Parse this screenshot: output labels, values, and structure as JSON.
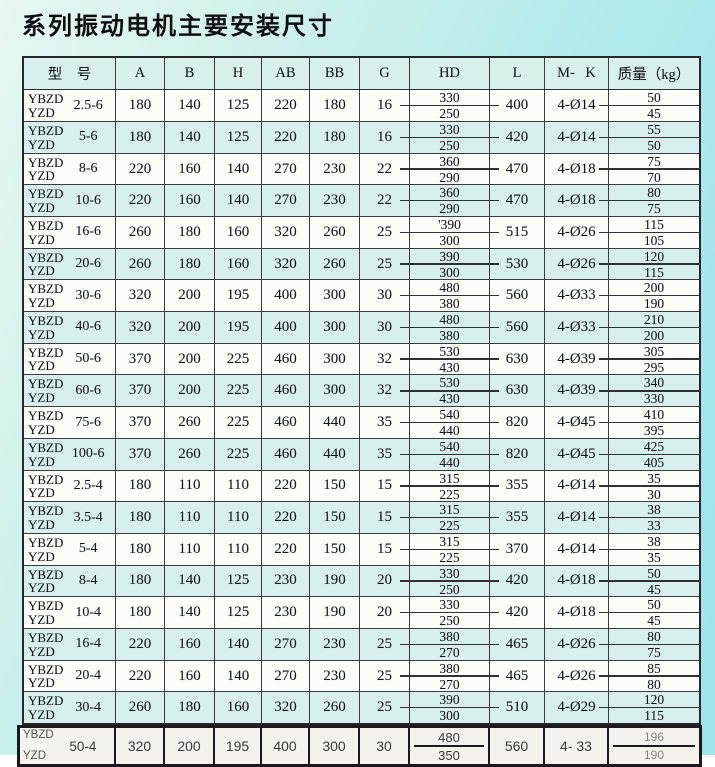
{
  "title": "系列振动电机主要安装尺寸",
  "colors": {
    "page_cyan": "#a4e6ec",
    "stripe_cyan": "#d7f0ed",
    "row_white": "#fcfcf8",
    "grid_line": "#3b3b40",
    "text": "#15151d",
    "strip_paper": "#f3f2ec"
  },
  "table": {
    "headers": [
      "型　号",
      "A",
      "B",
      "H",
      "AB",
      "BB",
      "G",
      "HD",
      "L",
      "M- K",
      "质量（kg）"
    ],
    "rows": [
      {
        "brand_top": "YBZD",
        "brand_bottom": "YZD",
        "size": "2.5-6",
        "A": "180",
        "B": "140",
        "H": "125",
        "AB": "220",
        "BB": "180",
        "G": "16",
        "HD_top": "330",
        "HD_bottom": "250",
        "L": "400",
        "MK": "4-Ø14",
        "W_top": "50",
        "W_bottom": "45"
      },
      {
        "brand_top": "YBZD",
        "brand_bottom": "YZD",
        "size": "5-6",
        "A": "180",
        "B": "140",
        "H": "125",
        "AB": "220",
        "BB": "180",
        "G": "16",
        "HD_top": "330",
        "HD_bottom": "250",
        "L": "420",
        "MK": "4-Ø14",
        "W_top": "55",
        "W_bottom": "50"
      },
      {
        "brand_top": "YBZD",
        "brand_bottom": "YZD",
        "size": "8-6",
        "A": "220",
        "B": "160",
        "H": "140",
        "AB": "270",
        "BB": "230",
        "G": "22",
        "HD_top": "360",
        "HD_bottom": "290",
        "L": "470",
        "MK": "4-Ø18",
        "W_top": "75",
        "W_bottom": "70"
      },
      {
        "brand_top": "YBZD",
        "brand_bottom": "YZD",
        "size": "10-6",
        "A": "220",
        "B": "160",
        "H": "140",
        "AB": "270",
        "BB": "230",
        "G": "22",
        "HD_top": "360",
        "HD_bottom": "290",
        "L": "470",
        "MK": "4-Ø18",
        "W_top": "80",
        "W_bottom": "75"
      },
      {
        "brand_top": "YBZD",
        "brand_bottom": "YZD",
        "size": "16-6",
        "A": "260",
        "B": "180",
        "H": "160",
        "AB": "320",
        "BB": "260",
        "G": "25",
        "HD_top": "'390",
        "HD_bottom": "300",
        "L": "515",
        "MK": "4-Ø26",
        "W_top": "115",
        "W_bottom": "105"
      },
      {
        "brand_top": "YBZD",
        "brand_bottom": "YZD",
        "size": "20-6",
        "A": "260",
        "B": "180",
        "H": "160",
        "AB": "320",
        "BB": "260",
        "G": "25",
        "HD_top": "390",
        "HD_bottom": "300",
        "L": "530",
        "MK": "4-Ø26",
        "W_top": "120",
        "W_bottom": "115"
      },
      {
        "brand_top": "YBZD",
        "brand_bottom": "YZD",
        "size": "30-6",
        "A": "320",
        "B": "200",
        "H": "195",
        "AB": "400",
        "BB": "300",
        "G": "30",
        "HD_top": "480",
        "HD_bottom": "380",
        "L": "560",
        "MK": "4-Ø33",
        "W_top": "200",
        "W_bottom": "190"
      },
      {
        "brand_top": "YBZD",
        "brand_bottom": "YZD",
        "size": "40-6",
        "A": "320",
        "B": "200",
        "H": "195",
        "AB": "400",
        "BB": "300",
        "G": "30",
        "HD_top": "480",
        "HD_bottom": "380",
        "L": "560",
        "MK": "4-Ø33",
        "W_top": "210",
        "W_bottom": "200"
      },
      {
        "brand_top": "YBZD",
        "brand_bottom": "YZD",
        "size": "50-6",
        "A": "370",
        "B": "200",
        "H": "225",
        "AB": "460",
        "BB": "300",
        "G": "32",
        "HD_top": "530",
        "HD_bottom": "430",
        "L": "630",
        "MK": "4-Ø39",
        "W_top": "305",
        "W_bottom": "295"
      },
      {
        "brand_top": "YBZD",
        "brand_bottom": "YZD",
        "size": "60-6",
        "A": "370",
        "B": "200",
        "H": "225",
        "AB": "460",
        "BB": "300",
        "G": "32",
        "HD_top": "530",
        "HD_bottom": "430",
        "L": "630",
        "MK": "4-Ø39",
        "W_top": "340",
        "W_bottom": "330"
      },
      {
        "brand_top": "YBZD",
        "brand_bottom": "YZD",
        "size": "75-6",
        "A": "370",
        "B": "260",
        "H": "225",
        "AB": "460",
        "BB": "440",
        "G": "35",
        "HD_top": "540",
        "HD_bottom": "440",
        "L": "820",
        "MK": "4-Ø45",
        "W_top": "410",
        "W_bottom": "395"
      },
      {
        "brand_top": "YBZD",
        "brand_bottom": "YZD",
        "size": "100-6",
        "A": "370",
        "B": "260",
        "H": "225",
        "AB": "460",
        "BB": "440",
        "G": "35",
        "HD_top": "540",
        "HD_bottom": "440",
        "L": "820",
        "MK": "4-Ø45",
        "W_top": "425",
        "W_bottom": "405"
      },
      {
        "brand_top": "YBZD",
        "brand_bottom": "YZD",
        "size": "2.5-4",
        "A": "180",
        "B": "110",
        "H": "110",
        "AB": "220",
        "BB": "150",
        "G": "15",
        "HD_top": "315",
        "HD_bottom": "225",
        "L": "355",
        "MK": "4-Ø14",
        "W_top": "35",
        "W_bottom": "30"
      },
      {
        "brand_top": "YBZD",
        "brand_bottom": "YZD",
        "size": "3.5-4",
        "A": "180",
        "B": "110",
        "H": "110",
        "AB": "220",
        "BB": "150",
        "G": "15",
        "HD_top": "315",
        "HD_bottom": "225",
        "L": "355",
        "MK": "4-Ø14",
        "W_top": "38",
        "W_bottom": "33"
      },
      {
        "brand_top": "YBZD",
        "brand_bottom": "YZD",
        "size": "5-4",
        "A": "180",
        "B": "110",
        "H": "110",
        "AB": "220",
        "BB": "150",
        "G": "15",
        "HD_top": "315",
        "HD_bottom": "225",
        "L": "370",
        "MK": "4-Ø14",
        "W_top": "38",
        "W_bottom": "35"
      },
      {
        "brand_top": "YBZD",
        "brand_bottom": "YZD",
        "size": "8-4",
        "A": "180",
        "B": "140",
        "H": "125",
        "AB": "230",
        "BB": "190",
        "G": "20",
        "HD_top": "330",
        "HD_bottom": "250",
        "L": "420",
        "MK": "4-Ø18",
        "W_top": "50",
        "W_bottom": "45"
      },
      {
        "brand_top": "YBZD",
        "brand_bottom": "YZD",
        "size": "10-4",
        "A": "180",
        "B": "140",
        "H": "125",
        "AB": "230",
        "BB": "190",
        "G": "20",
        "HD_top": "330",
        "HD_bottom": "250",
        "L": "420",
        "MK": "4-Ø18",
        "W_top": "50",
        "W_bottom": "45"
      },
      {
        "brand_top": "YBZD",
        "brand_bottom": "YZD",
        "size": "16-4",
        "A": "220",
        "B": "160",
        "H": "140",
        "AB": "270",
        "BB": "230",
        "G": "25",
        "HD_top": "380",
        "HD_bottom": "270",
        "L": "465",
        "MK": "4-Ø26",
        "W_top": "80",
        "W_bottom": "75"
      },
      {
        "brand_top": "YBZD",
        "brand_bottom": "YZD",
        "size": "20-4",
        "A": "220",
        "B": "160",
        "H": "140",
        "AB": "270",
        "BB": "230",
        "G": "25",
        "HD_top": "380",
        "HD_bottom": "270",
        "L": "465",
        "MK": "4-Ø26",
        "W_top": "85",
        "W_bottom": "80"
      },
      {
        "brand_top": "YBZD",
        "brand_bottom": "YZD",
        "size": "30-4",
        "A": "260",
        "B": "180",
        "H": "160",
        "AB": "320",
        "BB": "260",
        "G": "25",
        "HD_top": "390",
        "HD_bottom": "300",
        "L": "510",
        "MK": "4-Ø29",
        "W_top": "120",
        "W_bottom": "115"
      }
    ],
    "bottom_row": {
      "brand_top": "YBZD",
      "brand_bottom": "YZD",
      "size": "50-4",
      "A": "320",
      "B": "200",
      "H": "195",
      "AB": "400",
      "BB": "300",
      "G": "30",
      "HD_top": "480",
      "HD_bottom": "350",
      "L": "560",
      "MK": "4- 33",
      "W_top": "196",
      "W_bottom": "190"
    }
  }
}
